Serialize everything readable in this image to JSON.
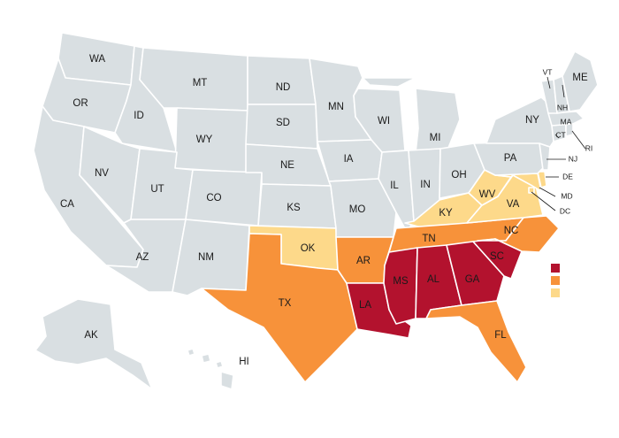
{
  "colors": {
    "default": "#d9dfe2",
    "high": "#b3122e",
    "medium": "#f7923a",
    "low": "#fdd98a",
    "border": "#ffffff",
    "text": "#1a1a1a"
  },
  "legend": [
    {
      "category": "high",
      "color": "#b3122e"
    },
    {
      "category": "medium",
      "color": "#f7923a"
    },
    {
      "category": "low",
      "color": "#fdd98a"
    }
  ],
  "states": [
    {
      "abbr": "WA",
      "category": "default"
    },
    {
      "abbr": "OR",
      "category": "default"
    },
    {
      "abbr": "CA",
      "category": "default"
    },
    {
      "abbr": "ID",
      "category": "default"
    },
    {
      "abbr": "NV",
      "category": "default"
    },
    {
      "abbr": "MT",
      "category": "default"
    },
    {
      "abbr": "WY",
      "category": "default"
    },
    {
      "abbr": "UT",
      "category": "default"
    },
    {
      "abbr": "AZ",
      "category": "default"
    },
    {
      "abbr": "CO",
      "category": "default"
    },
    {
      "abbr": "NM",
      "category": "default"
    },
    {
      "abbr": "ND",
      "category": "default"
    },
    {
      "abbr": "SD",
      "category": "default"
    },
    {
      "abbr": "NE",
      "category": "default"
    },
    {
      "abbr": "KS",
      "category": "default"
    },
    {
      "abbr": "OK",
      "category": "low"
    },
    {
      "abbr": "TX",
      "category": "medium"
    },
    {
      "abbr": "MN",
      "category": "default"
    },
    {
      "abbr": "IA",
      "category": "default"
    },
    {
      "abbr": "MO",
      "category": "default"
    },
    {
      "abbr": "AR",
      "category": "medium"
    },
    {
      "abbr": "LA",
      "category": "high"
    },
    {
      "abbr": "WI",
      "category": "default"
    },
    {
      "abbr": "IL",
      "category": "default"
    },
    {
      "abbr": "MI",
      "category": "default"
    },
    {
      "abbr": "IN",
      "category": "default"
    },
    {
      "abbr": "OH",
      "category": "default"
    },
    {
      "abbr": "KY",
      "category": "low"
    },
    {
      "abbr": "TN",
      "category": "medium"
    },
    {
      "abbr": "MS",
      "category": "high"
    },
    {
      "abbr": "AL",
      "category": "high"
    },
    {
      "abbr": "GA",
      "category": "high"
    },
    {
      "abbr": "FL",
      "category": "medium"
    },
    {
      "abbr": "SC",
      "category": "high"
    },
    {
      "abbr": "NC",
      "category": "medium"
    },
    {
      "abbr": "VA",
      "category": "low"
    },
    {
      "abbr": "WV",
      "category": "low"
    },
    {
      "abbr": "MD",
      "category": "low"
    },
    {
      "abbr": "DE",
      "category": "low"
    },
    {
      "abbr": "DC",
      "category": "low"
    },
    {
      "abbr": "PA",
      "category": "default"
    },
    {
      "abbr": "NJ",
      "category": "default"
    },
    {
      "abbr": "NY",
      "category": "default"
    },
    {
      "abbr": "CT",
      "category": "default"
    },
    {
      "abbr": "RI",
      "category": "default"
    },
    {
      "abbr": "MA",
      "category": "default"
    },
    {
      "abbr": "VT",
      "category": "default"
    },
    {
      "abbr": "NH",
      "category": "default"
    },
    {
      "abbr": "ME",
      "category": "default"
    },
    {
      "abbr": "AK",
      "category": "default"
    },
    {
      "abbr": "HI",
      "category": "default"
    }
  ]
}
